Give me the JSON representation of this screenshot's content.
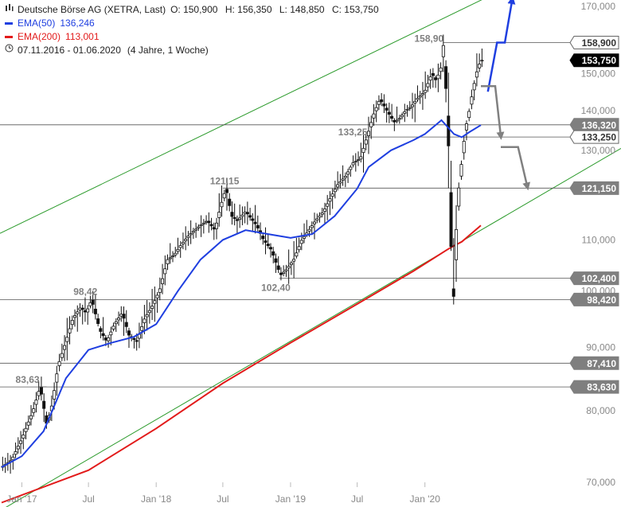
{
  "legend": {
    "title": "Deutsche Börse AG (XETRA, Last)",
    "ohlc": {
      "open": "O: 150,900",
      "high": "H: 156,350",
      "low": "L: 148,850",
      "close": "C: 153,750"
    },
    "ema50": {
      "label": "EMA(50)",
      "value": "136,246",
      "color": "#1f3fe0"
    },
    "ema200": {
      "label": "EMA(200)",
      "value": "113,001",
      "color": "#e21a1a"
    },
    "period": "07.11.2016 - 01.06.2020",
    "period_detail": "(4 Jahre, 1 Woche)",
    "calendar_icon": "clock-icon",
    "chart_icon": "candles-icon"
  },
  "chart_data": {
    "type": "line",
    "subtype": "candlestick price chart with EMA overlays",
    "scale": "log",
    "ylim": [
      68,
      172
    ],
    "y_ticks": [
      {
        "value": 70,
        "label": "70,000"
      },
      {
        "value": 80,
        "label": "80,000"
      },
      {
        "value": 90,
        "label": "90,000"
      },
      {
        "value": 100,
        "label": "100,000"
      },
      {
        "value": 110,
        "label": "110,000"
      },
      {
        "value": 130,
        "label": "130,000"
      },
      {
        "value": 140,
        "label": "140,000"
      },
      {
        "value": 150,
        "label": "150,000"
      },
      {
        "value": 170,
        "label": "170,000"
      }
    ],
    "x_ticks": [
      {
        "date": "2017-01-01",
        "label": "Jan '17"
      },
      {
        "date": "2017-07-01",
        "label": "Jul"
      },
      {
        "date": "2018-01-01",
        "label": "Jan '18"
      },
      {
        "date": "2018-07-01",
        "label": "Jul"
      },
      {
        "date": "2019-01-01",
        "label": "Jan '19"
      },
      {
        "date": "2019-07-01",
        "label": "Jul"
      },
      {
        "date": "2020-01-01",
        "label": "Jan '20"
      }
    ],
    "xlim": [
      "2016-11-07",
      "2020-11-20"
    ],
    "price_points": [
      [
        "2016-11-07",
        72
      ],
      [
        "2016-12-05",
        73
      ],
      [
        "2017-01-02",
        76
      ],
      [
        "2017-02-01",
        80
      ],
      [
        "2017-02-20",
        83.6
      ],
      [
        "2017-03-10",
        78
      ],
      [
        "2017-03-25",
        81
      ],
      [
        "2017-04-10",
        87
      ],
      [
        "2017-05-01",
        91
      ],
      [
        "2017-05-20",
        95
      ],
      [
        "2017-06-10",
        97
      ],
      [
        "2017-06-25",
        96
      ],
      [
        "2017-07-10",
        98.4
      ],
      [
        "2017-08-01",
        93
      ],
      [
        "2017-08-20",
        91
      ],
      [
        "2017-09-10",
        94
      ],
      [
        "2017-10-01",
        96
      ],
      [
        "2017-10-20",
        92
      ],
      [
        "2017-11-10",
        91
      ],
      [
        "2017-12-01",
        95
      ],
      [
        "2017-12-20",
        97
      ],
      [
        "2018-01-10",
        100
      ],
      [
        "2018-02-01",
        106
      ],
      [
        "2018-02-20",
        107
      ],
      [
        "2018-03-10",
        109
      ],
      [
        "2018-04-01",
        111
      ],
      [
        "2018-05-01",
        113
      ],
      [
        "2018-05-20",
        114
      ],
      [
        "2018-06-10",
        112
      ],
      [
        "2018-06-25",
        117
      ],
      [
        "2018-07-10",
        121.15
      ],
      [
        "2018-07-25",
        115
      ],
      [
        "2018-08-10",
        114
      ],
      [
        "2018-09-01",
        116
      ],
      [
        "2018-10-01",
        113
      ],
      [
        "2018-10-20",
        110
      ],
      [
        "2018-11-10",
        108
      ],
      [
        "2018-12-05",
        103
      ],
      [
        "2018-12-20",
        104
      ],
      [
        "2019-01-10",
        106
      ],
      [
        "2019-02-01",
        110
      ],
      [
        "2019-02-20",
        112
      ],
      [
        "2019-03-10",
        114
      ],
      [
        "2019-04-01",
        116
      ],
      [
        "2019-04-20",
        119
      ],
      [
        "2019-05-10",
        122
      ],
      [
        "2019-06-01",
        124
      ],
      [
        "2019-06-20",
        127
      ],
      [
        "2019-07-10",
        128
      ],
      [
        "2019-07-28",
        133.25
      ],
      [
        "2019-08-15",
        139
      ],
      [
        "2019-09-01",
        143
      ],
      [
        "2019-09-20",
        140
      ],
      [
        "2019-10-10",
        137
      ],
      [
        "2019-10-25",
        138
      ],
      [
        "2019-11-10",
        140
      ],
      [
        "2019-11-25",
        141
      ],
      [
        "2019-12-10",
        143
      ],
      [
        "2020-01-01",
        145
      ],
      [
        "2020-01-20",
        150
      ],
      [
        "2020-02-01",
        148
      ],
      [
        "2020-02-15",
        152
      ],
      [
        "2020-02-20",
        158.9
      ],
      [
        "2020-02-28",
        145
      ],
      [
        "2020-03-06",
        130
      ],
      [
        "2020-03-13",
        107
      ],
      [
        "2020-03-18",
        96
      ],
      [
        "2020-03-25",
        110
      ],
      [
        "2020-04-01",
        120
      ],
      [
        "2020-04-10",
        127
      ],
      [
        "2020-04-20",
        135
      ],
      [
        "2020-05-01",
        140
      ],
      [
        "2020-05-10",
        145
      ],
      [
        "2020-05-20",
        150
      ],
      [
        "2020-06-01",
        153.75
      ]
    ],
    "series": [
      {
        "name": "EMA(50)",
        "color": "#1f3fe0",
        "points": [
          [
            "2016-11-07",
            72
          ],
          [
            "2017-01-01",
            73.5
          ],
          [
            "2017-03-01",
            77
          ],
          [
            "2017-05-01",
            85
          ],
          [
            "2017-07-01",
            89.6
          ],
          [
            "2017-09-01",
            90.8
          ],
          [
            "2017-11-01",
            91.8
          ],
          [
            "2018-01-01",
            94
          ],
          [
            "2018-03-01",
            100
          ],
          [
            "2018-05-01",
            106
          ],
          [
            "2018-07-01",
            110
          ],
          [
            "2018-09-01",
            112
          ],
          [
            "2018-11-01",
            111.2
          ],
          [
            "2019-01-01",
            110.4
          ],
          [
            "2019-03-01",
            111.2
          ],
          [
            "2019-05-01",
            115
          ],
          [
            "2019-07-01",
            121
          ],
          [
            "2019-08-01",
            126
          ],
          [
            "2019-10-01",
            130
          ],
          [
            "2019-12-01",
            132.5
          ],
          [
            "2020-01-01",
            134
          ],
          [
            "2020-02-15",
            137.5
          ],
          [
            "2020-03-20",
            134
          ],
          [
            "2020-04-10",
            133.2
          ],
          [
            "2020-05-01",
            134.5
          ],
          [
            "2020-06-01",
            136.246
          ]
        ]
      },
      {
        "name": "EMA(200)",
        "color": "#e21a1a",
        "points": [
          [
            "2016-11-07",
            67.4
          ],
          [
            "2017-07-01",
            71.6
          ],
          [
            "2018-01-01",
            77.4
          ],
          [
            "2018-07-01",
            84.2
          ],
          [
            "2019-01-01",
            90.8
          ],
          [
            "2019-07-01",
            97.6
          ],
          [
            "2019-12-01",
            103.8
          ],
          [
            "2020-03-01",
            108
          ],
          [
            "2020-03-20",
            108.8
          ],
          [
            "2020-04-10",
            109.6
          ],
          [
            "2020-06-01",
            113.001
          ]
        ]
      }
    ],
    "trend_channel": {
      "color": "#2a9a2a",
      "upper": [
        [
          "2016-11-07",
          111.5
        ],
        [
          "2020-05-15",
          171
        ]
      ],
      "lower": [
        [
          "2016-11-07",
          66.5
        ],
        [
          "2020-11-20",
          120
        ]
      ]
    },
    "levels": [
      {
        "value": 158.9,
        "label": "158,900",
        "style": "outline"
      },
      {
        "value": 153.75,
        "label": "153,750",
        "style": "solid-black"
      },
      {
        "value": 136.32,
        "label": "136,320",
        "style": "gray"
      },
      {
        "value": 133.25,
        "label": "133,250",
        "style": "outline"
      },
      {
        "value": 121.15,
        "label": "121,150",
        "style": "gray"
      },
      {
        "value": 102.4,
        "label": "102,400",
        "style": "gray"
      },
      {
        "value": 98.42,
        "label": "98,420",
        "style": "gray"
      },
      {
        "value": 87.41,
        "label": "87,410",
        "style": "gray"
      },
      {
        "value": 83.63,
        "label": "83,630",
        "style": "gray"
      }
    ],
    "peak_labels": [
      {
        "date": "2017-02-20",
        "value": 83.63,
        "text": "83,63"
      },
      {
        "date": "2017-07-10",
        "value": 98.42,
        "text": "98,42"
      },
      {
        "date": "2018-07-10",
        "value": 121.15,
        "text": "121,15"
      },
      {
        "date": "2018-12-05",
        "value": 102.4,
        "text": "102,40"
      },
      {
        "date": "2019-07-28",
        "value": 133.25,
        "text": "133,25"
      },
      {
        "date": "2020-02-20",
        "value": 158.9,
        "text": "158,90"
      }
    ],
    "scenario_arrows": [
      {
        "color": "#1f3fe0",
        "points": [
          [
            "2020-06-20",
            145
          ],
          [
            "2020-07-15",
            158.9
          ],
          [
            "2020-08-05",
            158.9
          ],
          [
            "2020-08-25",
            172
          ]
        ]
      },
      {
        "color": "#808080",
        "points": [
          [
            "2020-06-01",
            146.5
          ],
          [
            "2020-07-10",
            146.5
          ],
          [
            "2020-07-25",
            133.5
          ]
        ]
      },
      {
        "color": "#808080",
        "points": [
          [
            "2020-07-25",
            130.8
          ],
          [
            "2020-09-10",
            130.8
          ],
          [
            "2020-10-05",
            121.5
          ]
        ]
      }
    ]
  }
}
